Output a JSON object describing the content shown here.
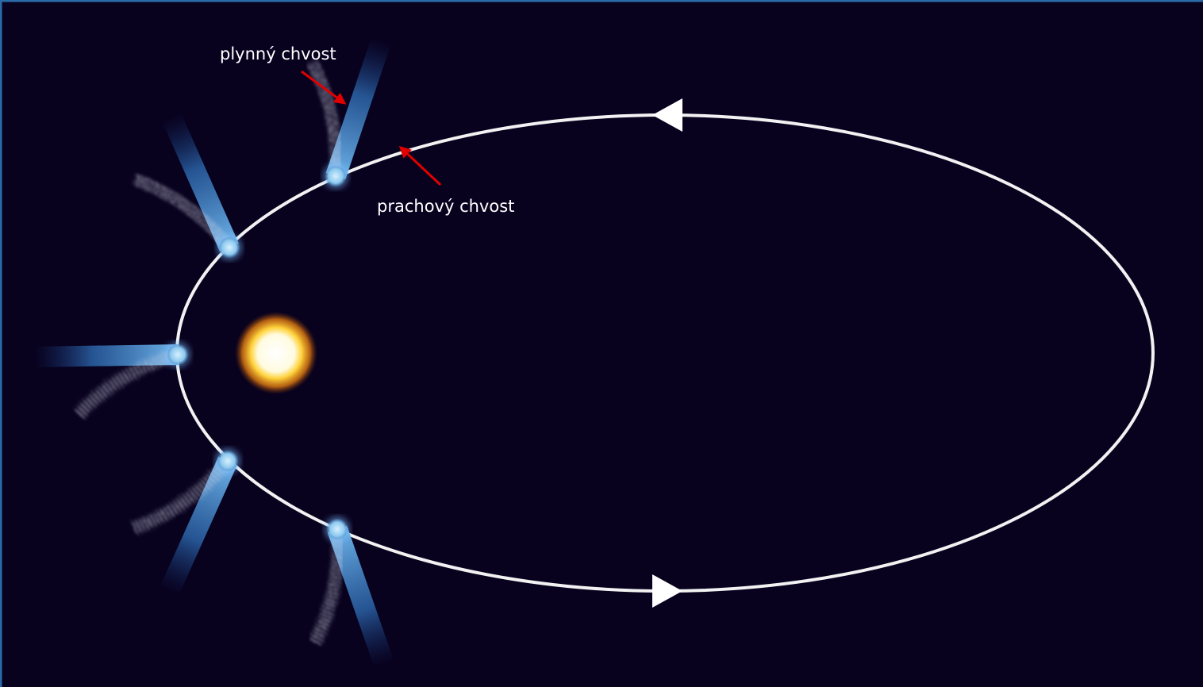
{
  "labels": {
    "gas_tail": "plynný chvost",
    "dust_tail": "prachový chvost"
  }
}
